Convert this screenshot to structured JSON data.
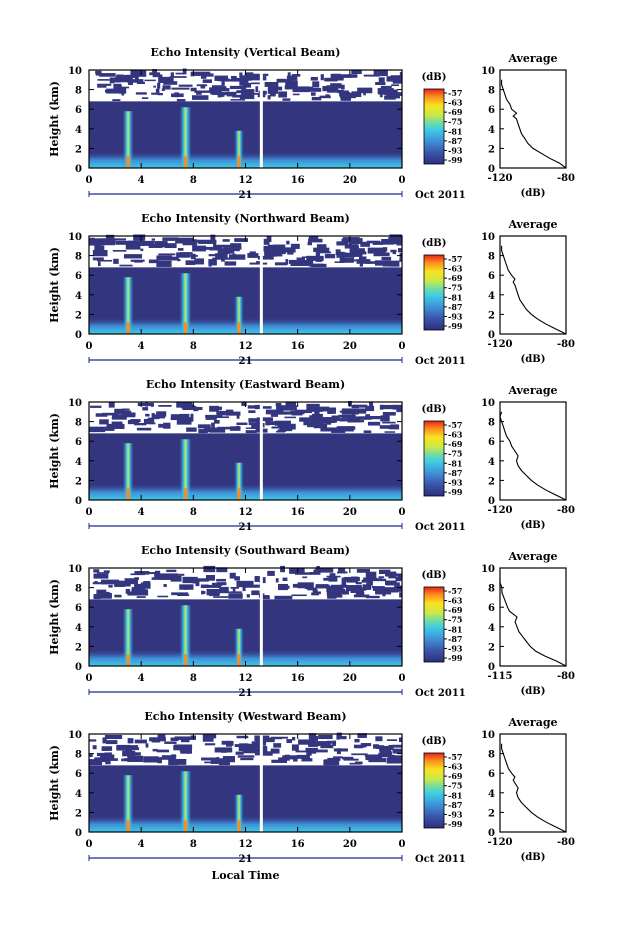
{
  "figure": {
    "xlabel": "Local Time",
    "date_label": "Oct 2011",
    "day_label": "21"
  },
  "chart_data": [
    {
      "type": "heatmap",
      "title": "Echo Intensity (Vertical Beam)",
      "ylabel": "Height (km)",
      "xlim": [
        0,
        24
      ],
      "ylim": [
        0,
        10
      ],
      "xticks": [
        "0",
        "4",
        "8",
        "12",
        "16",
        "20",
        "0"
      ],
      "yticks": [
        "0",
        "2",
        "4",
        "6",
        "8",
        "10"
      ],
      "colorbar_label": "(dB)",
      "colorbar_ticks": [
        "-57",
        "-63",
        "-69",
        "-75",
        "-81",
        "-87",
        "-93",
        "-99"
      ],
      "average": {
        "title": "Average",
        "xlabel": "(dB)",
        "xticks": [
          "-120",
          "-80"
        ],
        "xlim": [
          -120,
          -80
        ],
        "yticks": [
          "0",
          "2",
          "4",
          "6",
          "8",
          "10"
        ],
        "profile": [
          [
            -80,
            0
          ],
          [
            -84,
            0.5
          ],
          [
            -90,
            1
          ],
          [
            -95,
            1.5
          ],
          [
            -100,
            2
          ],
          [
            -103,
            2.5
          ],
          [
            -105,
            3
          ],
          [
            -107,
            3.5
          ],
          [
            -108,
            4
          ],
          [
            -109,
            4.5
          ],
          [
            -110,
            5
          ],
          [
            -112,
            5.3
          ],
          [
            -110,
            5.6
          ],
          [
            -113,
            6
          ],
          [
            -114,
            6.5
          ],
          [
            -116,
            7
          ],
          [
            -117,
            7.5
          ],
          [
            -118,
            8
          ],
          [
            -119,
            8.5
          ],
          [
            -119,
            9
          ]
        ]
      }
    },
    {
      "type": "heatmap",
      "title": "Echo Intensity (Northward Beam)",
      "ylabel": "Height (km)",
      "xlim": [
        0,
        24
      ],
      "ylim": [
        0,
        10
      ],
      "xticks": [
        "0",
        "4",
        "8",
        "12",
        "16",
        "20",
        "0"
      ],
      "yticks": [
        "0",
        "2",
        "4",
        "6",
        "8",
        "10"
      ],
      "colorbar_label": "(dB)",
      "colorbar_ticks": [
        "-57",
        "-63",
        "-69",
        "-75",
        "-81",
        "-87",
        "-93",
        "-99"
      ],
      "average": {
        "title": "Average",
        "xlabel": "(dB)",
        "xticks": [
          "-120",
          "-80"
        ],
        "xlim": [
          -120,
          -80
        ],
        "yticks": [
          "0",
          "2",
          "4",
          "6",
          "8",
          "10"
        ],
        "profile": [
          [
            -80,
            0
          ],
          [
            -86,
            0.5
          ],
          [
            -92,
            1
          ],
          [
            -97,
            1.5
          ],
          [
            -101,
            2
          ],
          [
            -104,
            2.5
          ],
          [
            -106,
            3
          ],
          [
            -108,
            3.5
          ],
          [
            -109,
            4
          ],
          [
            -110,
            4.5
          ],
          [
            -111,
            5
          ],
          [
            -112,
            5.3
          ],
          [
            -111,
            5.6
          ],
          [
            -113,
            6
          ],
          [
            -115,
            6.5
          ],
          [
            -116,
            7
          ],
          [
            -117,
            7.5
          ],
          [
            -118,
            8
          ],
          [
            -119,
            8.5
          ],
          [
            -119,
            9
          ]
        ]
      }
    },
    {
      "type": "heatmap",
      "title": "Echo Intensity (Eastward Beam)",
      "ylabel": "Height (km)",
      "xlim": [
        0,
        24
      ],
      "ylim": [
        0,
        10
      ],
      "xticks": [
        "0",
        "4",
        "8",
        "12",
        "16",
        "20",
        "0"
      ],
      "yticks": [
        "0",
        "2",
        "4",
        "6",
        "8",
        "10"
      ],
      "colorbar_label": "(dB)",
      "colorbar_ticks": [
        "-57",
        "-63",
        "-69",
        "-75",
        "-81",
        "-87",
        "-93",
        "-99"
      ],
      "average": {
        "title": "Average",
        "xlabel": "(dB)",
        "xticks": [
          "-120",
          "-80"
        ],
        "xlim": [
          -120,
          -80
        ],
        "yticks": [
          "0",
          "2",
          "4",
          "6",
          "8",
          "10"
        ],
        "profile": [
          [
            -80,
            0
          ],
          [
            -86,
            0.5
          ],
          [
            -92,
            1
          ],
          [
            -97,
            1.5
          ],
          [
            -101,
            2
          ],
          [
            -104,
            2.5
          ],
          [
            -107,
            3
          ],
          [
            -109,
            3.5
          ],
          [
            -110,
            4
          ],
          [
            -109,
            4.5
          ],
          [
            -111,
            5
          ],
          [
            -113,
            5.5
          ],
          [
            -114,
            6
          ],
          [
            -116,
            6.5
          ],
          [
            -117,
            7
          ],
          [
            -118,
            7.5
          ],
          [
            -119,
            8
          ],
          [
            -120,
            8.5
          ],
          [
            -119,
            9
          ]
        ]
      }
    },
    {
      "type": "heatmap",
      "title": "Echo Intensity (Southward Beam)",
      "ylabel": "Height (km)",
      "xlim": [
        0,
        24
      ],
      "ylim": [
        0,
        10
      ],
      "xticks": [
        "0",
        "4",
        "8",
        "12",
        "16",
        "20",
        "0"
      ],
      "yticks": [
        "0",
        "2",
        "4",
        "6",
        "8",
        "10"
      ],
      "colorbar_label": "(dB)",
      "colorbar_ticks": [
        "-57",
        "-63",
        "-69",
        "-75",
        "-81",
        "-87",
        "-93",
        "-99"
      ],
      "average": {
        "title": "Average",
        "xlabel": "(dB)",
        "xticks": [
          "-115",
          "-80"
        ],
        "xlim": [
          -115,
          -80
        ],
        "yticks": [
          "0",
          "2",
          "4",
          "6",
          "8",
          "10"
        ],
        "profile": [
          [
            -80,
            0
          ],
          [
            -85,
            0.5
          ],
          [
            -91,
            1
          ],
          [
            -96,
            1.5
          ],
          [
            -99,
            2
          ],
          [
            -101,
            2.5
          ],
          [
            -103,
            3
          ],
          [
            -105,
            3.5
          ],
          [
            -106,
            4
          ],
          [
            -107,
            4.5
          ],
          [
            -106,
            5
          ],
          [
            -108,
            5.3
          ],
          [
            -110,
            5.6
          ],
          [
            -111,
            6
          ],
          [
            -112,
            6.5
          ],
          [
            -113,
            7
          ],
          [
            -114,
            7.5
          ],
          [
            -114,
            8
          ],
          [
            -115,
            8.5
          ],
          [
            -115,
            9
          ]
        ]
      }
    },
    {
      "type": "heatmap",
      "title": "Echo Intensity (Westward Beam)",
      "ylabel": "Height (km)",
      "xlim": [
        0,
        24
      ],
      "ylim": [
        0,
        10
      ],
      "xticks": [
        "0",
        "4",
        "8",
        "12",
        "16",
        "20",
        "0"
      ],
      "yticks": [
        "0",
        "2",
        "4",
        "6",
        "8",
        "10"
      ],
      "colorbar_label": "(dB)",
      "colorbar_ticks": [
        "-57",
        "-63",
        "-69",
        "-75",
        "-81",
        "-87",
        "-93",
        "-99"
      ],
      "average": {
        "title": "Average",
        "xlabel": "(dB)",
        "xticks": [
          "-120",
          "-80"
        ],
        "xlim": [
          -120,
          -80
        ],
        "yticks": [
          "0",
          "2",
          "4",
          "6",
          "8",
          "10"
        ],
        "profile": [
          [
            -80,
            0
          ],
          [
            -86,
            0.5
          ],
          [
            -92,
            1
          ],
          [
            -97,
            1.5
          ],
          [
            -101,
            2
          ],
          [
            -104,
            2.5
          ],
          [
            -107,
            3
          ],
          [
            -109,
            3.5
          ],
          [
            -110,
            4
          ],
          [
            -109,
            4.5
          ],
          [
            -111,
            5
          ],
          [
            -112,
            5.3
          ],
          [
            -111,
            5.6
          ],
          [
            -113,
            6
          ],
          [
            -115,
            6.5
          ],
          [
            -116,
            7
          ],
          [
            -117,
            7.5
          ],
          [
            -118,
            8
          ],
          [
            -119,
            8.5
          ],
          [
            -119,
            9
          ]
        ]
      }
    }
  ]
}
